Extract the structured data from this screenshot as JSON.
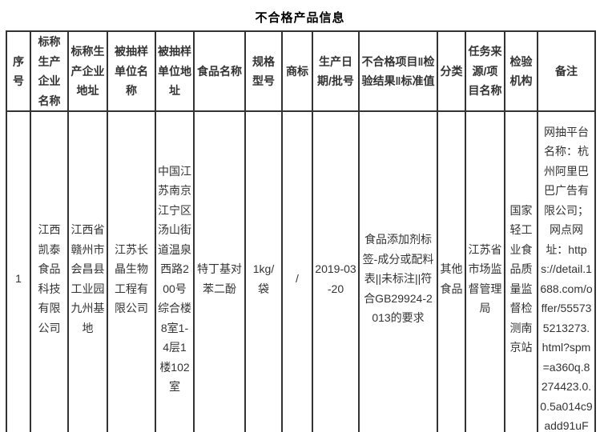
{
  "title": "不合格产品信息",
  "colors": {
    "border": "#333333",
    "text": "#333333",
    "title": "#000000",
    "background": "#ffffff"
  },
  "table": {
    "columns": [
      {
        "key": "serial-number",
        "label": "序号"
      },
      {
        "key": "producer-name",
        "label": "标称生产企业名称"
      },
      {
        "key": "producer-address",
        "label": "标称生产企业地址"
      },
      {
        "key": "sampled-unit-name",
        "label": "被抽样单位名称"
      },
      {
        "key": "sampled-unit-address",
        "label": "被抽样单位地址"
      },
      {
        "key": "food-name",
        "label": "食品名称"
      },
      {
        "key": "spec-model",
        "label": "规格型号"
      },
      {
        "key": "trademark",
        "label": "商标"
      },
      {
        "key": "production-date-batch",
        "label": "生产日期/批号"
      },
      {
        "key": "nonconforming-item-result-standard",
        "label": "不合格项目‖检验结果‖标准值"
      },
      {
        "key": "category",
        "label": "分类"
      },
      {
        "key": "task-source-project-name",
        "label": "任务来源/项目名称"
      },
      {
        "key": "inspection-agency",
        "label": "检验机构"
      },
      {
        "key": "remarks",
        "label": "备注"
      }
    ],
    "rows": [
      [
        "1",
        "江西凯泰食品科技有限公司",
        "江西省赣州市会昌县工业园九州基地",
        "江苏长晶生物工程有限公司",
        "中国江苏南京江宁区汤山街道温泉西路200号综合楼8室1-4层1楼102室",
        "特丁基对苯二酚",
        "1kg/袋",
        "/",
        "2019-03-20",
        "食品添加剂标签-成分或配料表||未标注||符合GB29924-2013的要求",
        "其他食品",
        "江苏省市场监督管理局",
        "国家轻工业食品质量监督检测南京站",
        "网抽平台名称：杭州阿里巴巴广告有限公司；网点网址：https://detail.1688.com/offer/555735213273.html?spm=a360q.8274423.0.0.5a014c9add91uF"
      ],
      [
        "",
        "",
        "",
        "",
        "",
        "",
        "",
        "",
        "",
        "",
        "",
        "",
        "",
        ""
      ]
    ]
  }
}
